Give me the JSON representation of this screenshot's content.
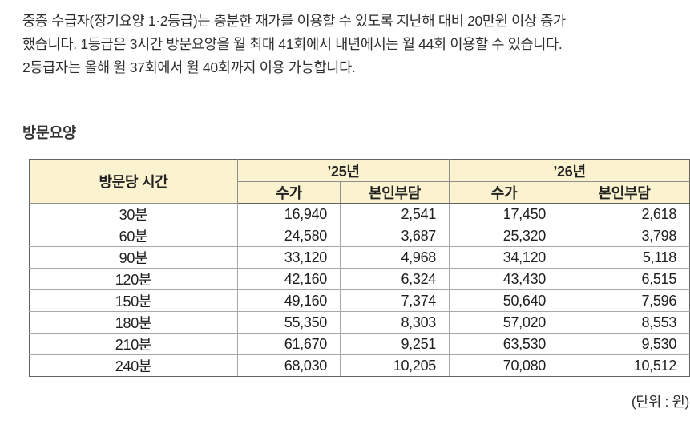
{
  "intro": {
    "lines": [
      "중증 수급자(장기요양 1·2등급)는 충분한 재가를 이용할 수 있도록 지난해 대비 20만원 이상 증가",
      "했습니다. 1등급은 3시간 방문요양을 월 최대 41회에서 내년에서는 월 44회 이용할 수 있습니다.",
      "2등급자는 올해 월 37회에서 월 40회까지 이용 가능합니다."
    ]
  },
  "section": {
    "title": "방문요양"
  },
  "table": {
    "time_header": "방문당 시간",
    "year_2025": "’25년",
    "year_2026": "’26년",
    "sub_price": "수가",
    "sub_copay": "본인부담",
    "sub_price_2026": "수가",
    "sub_copay_2026": "본인부담",
    "rows": [
      {
        "time": "30분",
        "values": [
          "16,940",
          "2,541",
          "17,450",
          "2,618"
        ]
      },
      {
        "time": "60분",
        "values": [
          "24,580",
          "3,687",
          "25,320",
          "3,798"
        ]
      },
      {
        "time": "90분",
        "values": [
          "33,120",
          "4,968",
          "34,120",
          "5,118"
        ]
      },
      {
        "time": "120분",
        "values": [
          "42,160",
          "6,324",
          "43,430",
          "6,515"
        ]
      },
      {
        "time": "150분",
        "values": [
          "49,160",
          "7,374",
          "50,640",
          "7,596"
        ]
      },
      {
        "time": "180분",
        "values": [
          "55,350",
          "8,303",
          "57,020",
          "8,553"
        ]
      },
      {
        "time": "210분",
        "values": [
          "61,670",
          "9,251",
          "63,530",
          "9,530"
        ]
      },
      {
        "time": "240분",
        "values": [
          "68,030",
          "10,205",
          "70,080",
          "10,512"
        ]
      }
    ],
    "unit_note": "(단위 : 원)"
  },
  "colors": {
    "header_bg": "#FBF3CF",
    "border_dark": "#636363",
    "border_light": "#A8A8A8",
    "text": "#2E2E2E"
  }
}
